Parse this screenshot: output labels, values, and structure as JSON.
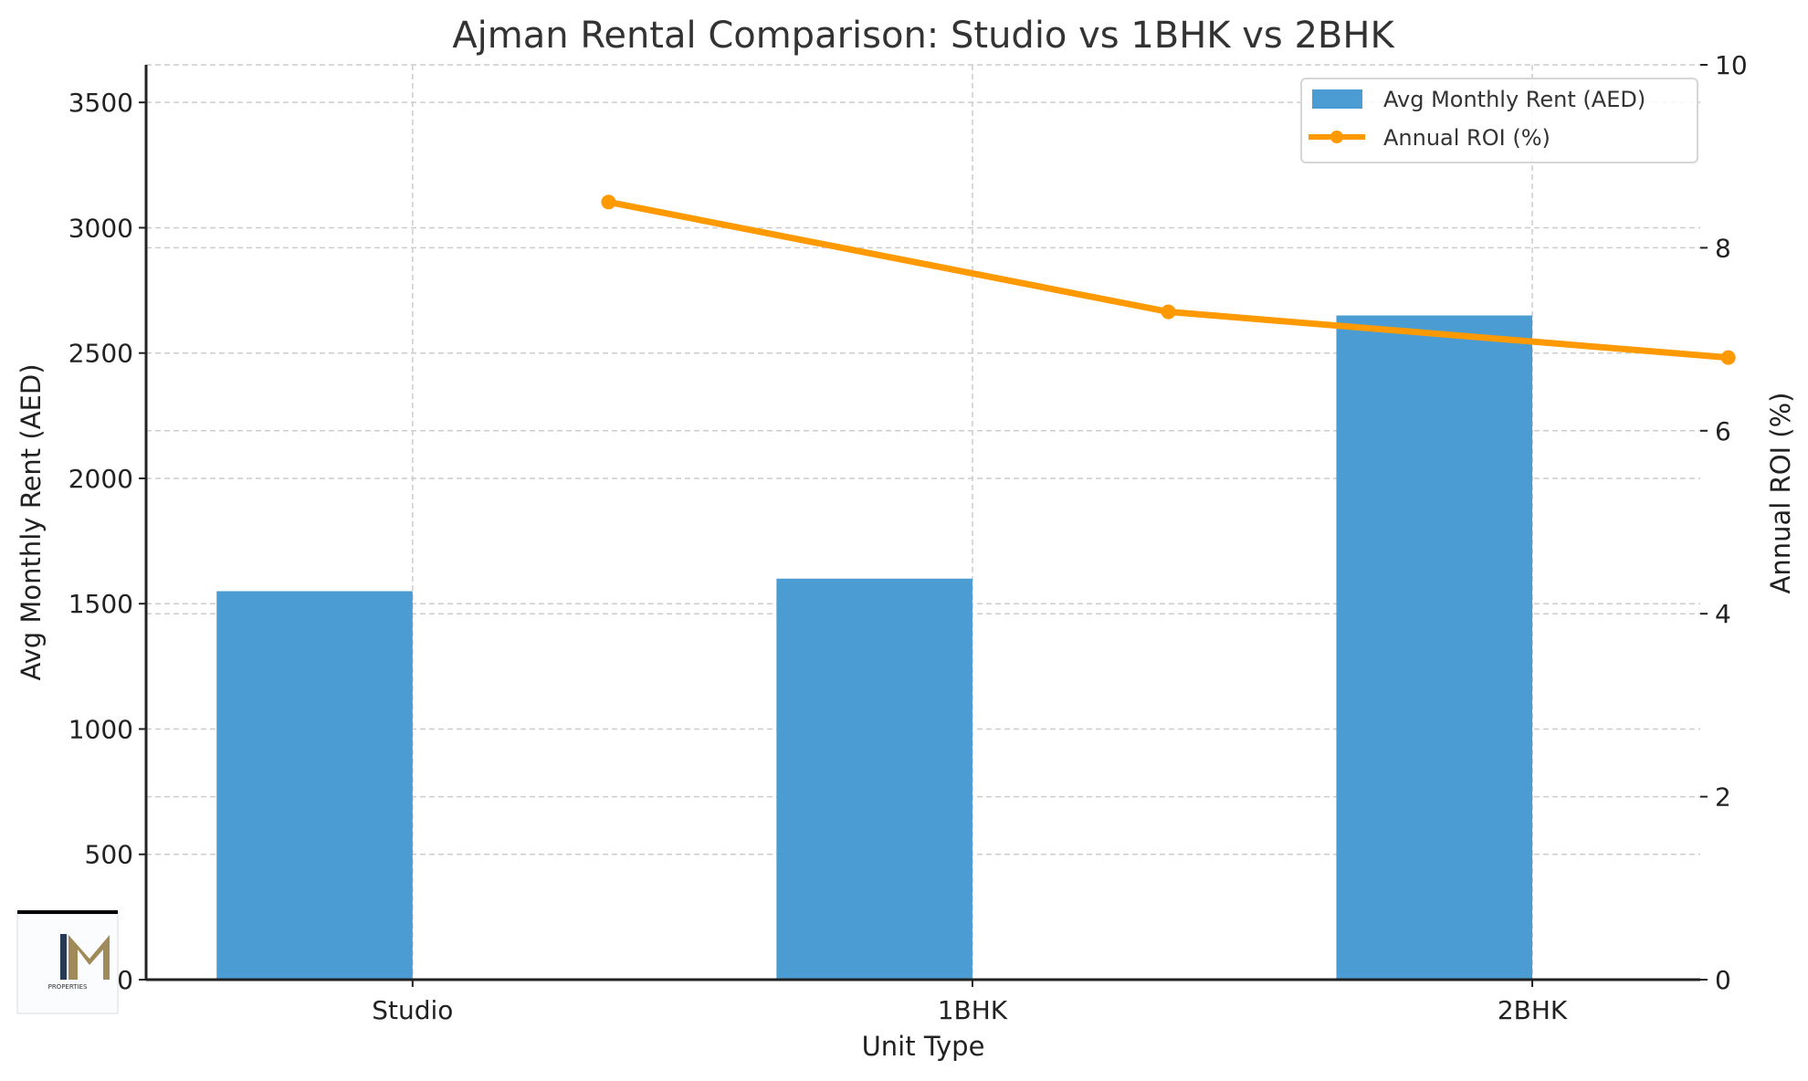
{
  "chart_data": {
    "type": "bar+line",
    "title": "Ajman Rental Comparison: Studio vs 1BHK vs 2BHK",
    "xlabel": "Unit Type",
    "ylabel": "Avg Monthly Rent (AED)",
    "y2label": "Annual ROI (%)",
    "categories": [
      "Studio",
      "1BHK",
      "2BHK"
    ],
    "series": [
      {
        "name": "Avg Monthly Rent (AED)",
        "type": "bar",
        "axis": "left",
        "values": [
          1550,
          1600,
          2650
        ],
        "color": "#4a9cd3"
      },
      {
        "name": "Annual ROI (%)",
        "type": "line",
        "axis": "right",
        "values": [
          8.5,
          7.3,
          6.8
        ],
        "color": "#ff9900",
        "marker": "circle"
      }
    ],
    "ylim": [
      0,
      3650
    ],
    "y2lim": [
      0,
      10
    ],
    "yticks": [
      0,
      500,
      1000,
      1500,
      2000,
      2500,
      3000,
      3500
    ],
    "y2ticks": [
      0,
      2,
      4,
      6,
      8,
      10
    ],
    "grid": true,
    "legend_placement": "top-right"
  },
  "logo": {
    "text": "PROPERTIES",
    "mark": "IM"
  }
}
